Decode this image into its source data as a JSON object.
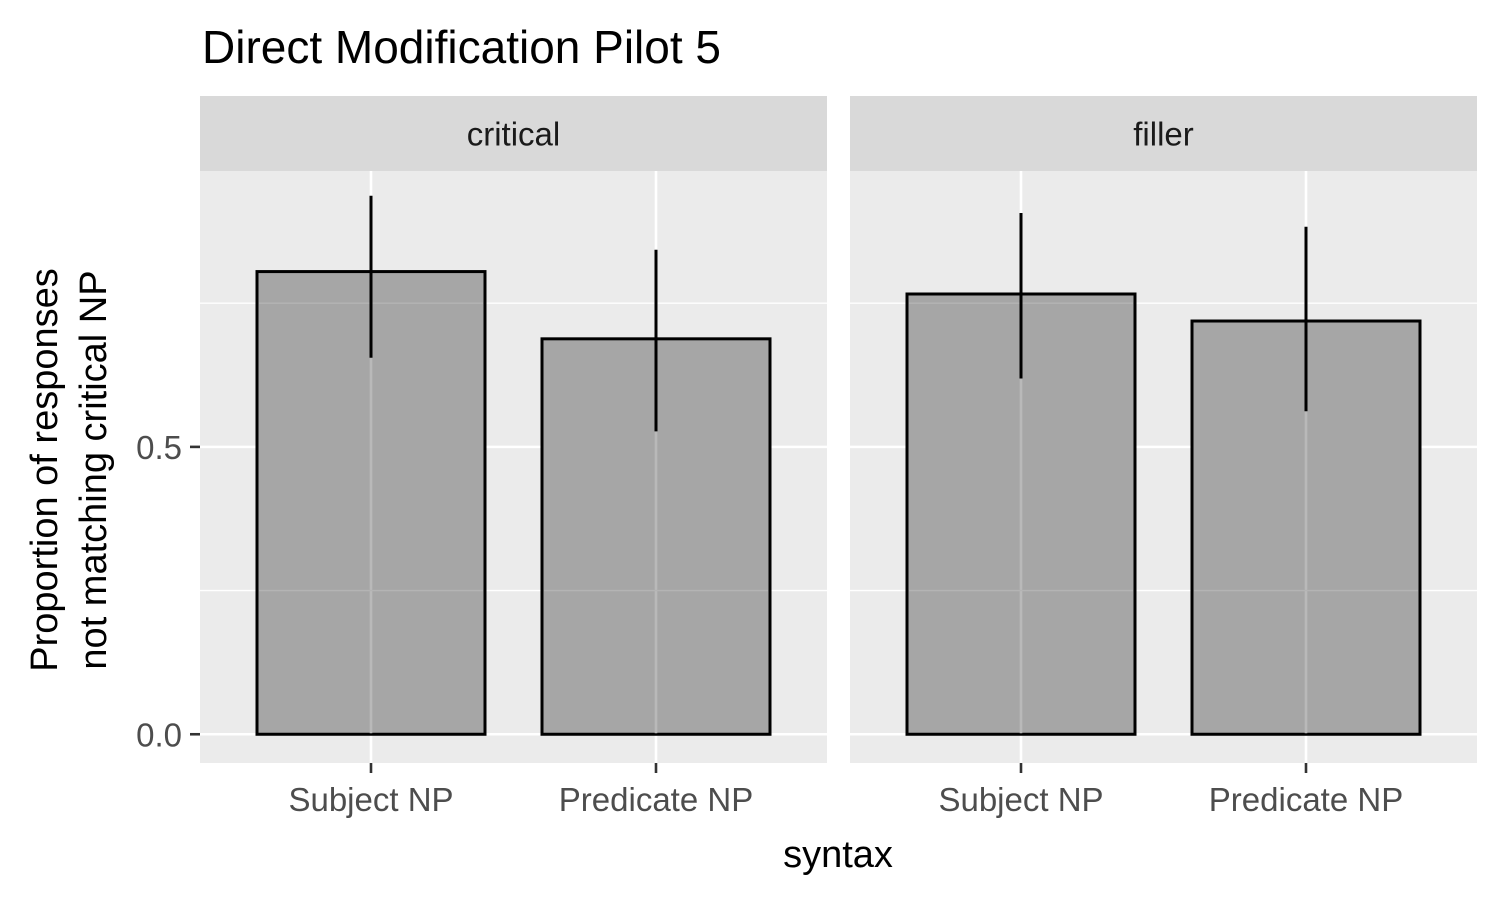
{
  "chart_data": {
    "type": "bar",
    "title": "Direct Modification Pilot 5",
    "xlabel": "syntax",
    "ylabel_lines": [
      "Proportion of responses",
      "not matching critical NP"
    ],
    "ylim": [
      -0.05,
      0.98
    ],
    "yticks": [
      0.0,
      0.5
    ],
    "ytick_labels": [
      "0.0",
      "0.5"
    ],
    "grid": true,
    "categories": [
      "Subject NP",
      "Predicate NP"
    ],
    "panels": [
      {
        "name": "critical",
        "values": [
          0.805,
          0.688
        ],
        "error_low": [
          0.655,
          0.527
        ],
        "error_high": [
          0.937,
          0.843
        ]
      },
      {
        "name": "filler",
        "values": [
          0.766,
          0.719
        ],
        "error_low": [
          0.619,
          0.562
        ],
        "error_high": [
          0.907,
          0.883
        ]
      }
    ],
    "colors": {
      "bar_fill": "#a3a3a3",
      "bar_stroke": "#000000",
      "panel_background": "#ebebeb",
      "strip_background": "#d9d9d9",
      "grid_major": "#ffffff",
      "tick_label": "#4d4d4d"
    }
  }
}
